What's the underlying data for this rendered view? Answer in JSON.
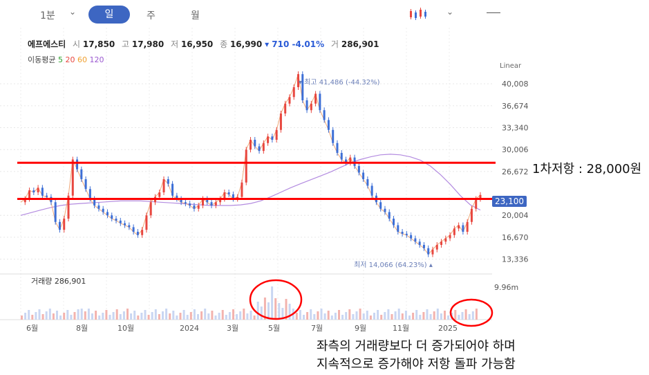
{
  "toolbar": {
    "interval": "1분",
    "tabs": [
      "일",
      "주",
      "월"
    ],
    "selected_tab": "일"
  },
  "quote": {
    "name": "에프에스티",
    "open_label": "시",
    "open": "17,850",
    "high_label": "고",
    "high": "17,980",
    "low_label": "저",
    "low": "16,950",
    "close_label": "종",
    "close": "16,990",
    "change": "▾ 710 -4.01%",
    "volume_label": "거",
    "volume": "286,901"
  },
  "ma_legend": {
    "label": "이동평균",
    "periods": [
      "5",
      "20",
      "60",
      "120"
    ],
    "colors": [
      "#2ca02c",
      "#e8473f",
      "#f0a030",
      "#9b59d0"
    ]
  },
  "scale_label": "Linear",
  "current_price_badge": "23,100",
  "high_marker": "▾ 최고 41,486 (-44.32%)",
  "low_marker": "최저 14,066 (64.23%) ▴",
  "volume_panel": {
    "label": "거래량 286,901",
    "max_label": "9.96m"
  },
  "annotations": {
    "resistance1": "1차저항 : 28,000원",
    "note_line1": "좌측의 거래량보다 더 증가되어야 하며",
    "note_line2": "지속적으로 증가해야 저항 돌파 가능함"
  },
  "colors": {
    "up": "#e8473f",
    "down": "#3d6fd6",
    "accent": "#3d66c2",
    "line": "#ff0000"
  },
  "chart_data": {
    "type": "line",
    "title": "에프에스티",
    "y_ticks": [
      40008,
      36674,
      33340,
      30006,
      26672,
      20004,
      16670,
      13336
    ],
    "y_tick_labels": [
      "40,008",
      "36,674",
      "33,340",
      "30,006",
      "26,672",
      "20,004",
      "16,670",
      "13,336"
    ],
    "ylim": [
      11500,
      43500
    ],
    "x_tick_labels": [
      "6월",
      "8월",
      "10월",
      "2024",
      "3월",
      "5월",
      "7월",
      "9월",
      "11월",
      "2025"
    ],
    "horizontal_lines": [
      28000,
      22500
    ],
    "series": [
      {
        "values": [
          22000,
          22500,
          23800,
          23500,
          24200,
          23000,
          22800,
          22000,
          19000,
          17800,
          19500,
          23000,
          28500,
          27000,
          25500,
          24000,
          22500,
          21500,
          21000,
          20500,
          20000,
          19500,
          19200,
          18800,
          18500,
          18200,
          17500,
          17000,
          17800,
          20000,
          22000,
          22800,
          23500,
          25500,
          24800,
          23000,
          22500,
          22000,
          21800,
          21500,
          21000,
          21500,
          22500,
          22000,
          21500,
          22000,
          22500,
          23500,
          23200,
          22500,
          22800,
          25000,
          30000,
          31500,
          30500,
          29800,
          31000,
          32000,
          31500,
          33000,
          35500,
          37000,
          38000,
          39500,
          41486,
          37500,
          36000,
          37000,
          38500,
          36000,
          34500,
          33000,
          31000,
          29500,
          28500,
          28000,
          28800,
          27500,
          26500,
          25500,
          24500,
          23000,
          22000,
          21000,
          20500,
          19500,
          18500,
          17500,
          17200,
          17000,
          16500,
          16000,
          15500,
          15000,
          14066,
          14800,
          15500,
          16000,
          16500,
          17000,
          18000,
          18500,
          17500,
          19000,
          21000,
          22500,
          23100
        ]
      },
      {
        "name": "120",
        "values": [
          20000,
          20400,
          20800,
          21200,
          21500,
          21700,
          21800,
          21900,
          22000,
          22100,
          22200,
          22200,
          22200,
          22100,
          22000,
          21900,
          21800,
          21700,
          21600,
          21500,
          21500,
          21500,
          21600,
          21800,
          22200,
          22800,
          23500,
          24200,
          24800,
          25400,
          26000,
          26600,
          27300,
          28000,
          28500,
          28900,
          29200,
          29300,
          29200,
          28900,
          28400,
          27500,
          26200,
          24700,
          23000,
          21600,
          20800
        ]
      }
    ]
  }
}
